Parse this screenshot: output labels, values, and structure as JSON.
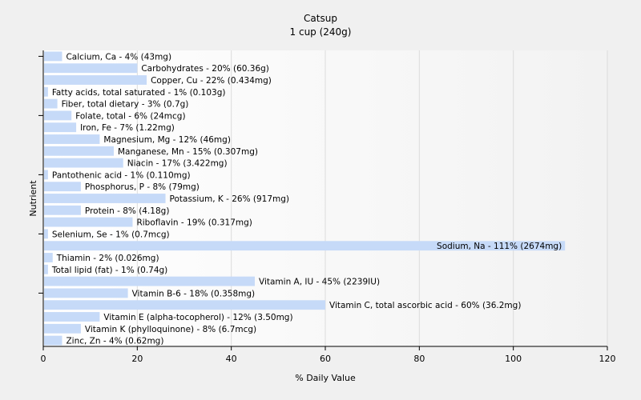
{
  "chart_data": {
    "type": "bar",
    "orientation": "horizontal",
    "title": "Catsup",
    "subtitle": "1 cup (240g)",
    "xlabel": "% Daily Value",
    "ylabel": "Nutrient",
    "xlim": [
      0,
      120
    ],
    "xticks": [
      0,
      20,
      40,
      60,
      80,
      100,
      120
    ],
    "grid": true,
    "bar_color": "#c6daf8",
    "categories": [
      "Calcium, Ca",
      "Carbohydrates",
      "Copper, Cu",
      "Fatty acids, total saturated",
      "Fiber, total dietary",
      "Folate, total",
      "Iron, Fe",
      "Magnesium, Mg",
      "Manganese, Mn",
      "Niacin",
      "Pantothenic acid",
      "Phosphorus, P",
      "Potassium, K",
      "Protein",
      "Riboflavin",
      "Selenium, Se",
      "Sodium, Na",
      "Thiamin",
      "Total lipid (fat)",
      "Vitamin A, IU",
      "Vitamin B-6",
      "Vitamin C, total ascorbic acid",
      "Vitamin E (alpha-tocopherol)",
      "Vitamin K (phylloquinone)",
      "Zinc, Zn"
    ],
    "values": [
      4,
      20,
      22,
      1,
      3,
      6,
      7,
      12,
      15,
      17,
      1,
      8,
      26,
      8,
      19,
      1,
      111,
      2,
      1,
      45,
      18,
      60,
      12,
      8,
      4
    ],
    "labels": [
      "Calcium, Ca - 4% (43mg)",
      "Carbohydrates - 20% (60.36g)",
      "Copper, Cu - 22% (0.434mg)",
      "Fatty acids, total saturated - 1% (0.103g)",
      "Fiber, total dietary - 3% (0.7g)",
      "Folate, total - 6% (24mcg)",
      "Iron, Fe - 7% (1.22mg)",
      "Magnesium, Mg - 12% (46mg)",
      "Manganese, Mn - 15% (0.307mg)",
      "Niacin - 17% (3.422mg)",
      "Pantothenic acid - 1% (0.110mg)",
      "Phosphorus, P - 8% (79mg)",
      "Potassium, K - 26% (917mg)",
      "Protein - 8% (4.18g)",
      "Riboflavin - 19% (0.317mg)",
      "Selenium, Se - 1% (0.7mcg)",
      "Sodium, Na - 111% (2674mg)",
      "Thiamin - 2% (0.026mg)",
      "Total lipid (fat) - 1% (0.74g)",
      "Vitamin A, IU - 45% (2239IU)",
      "Vitamin B-6 - 18% (0.358mg)",
      "Vitamin C, total ascorbic acid - 60% (36.2mg)",
      "Vitamin E (alpha-tocopherol) - 12% (3.50mg)",
      "Vitamin K (phylloquinone) - 8% (6.7mcg)",
      "Zinc, Zn - 4% (0.62mg)"
    ]
  }
}
